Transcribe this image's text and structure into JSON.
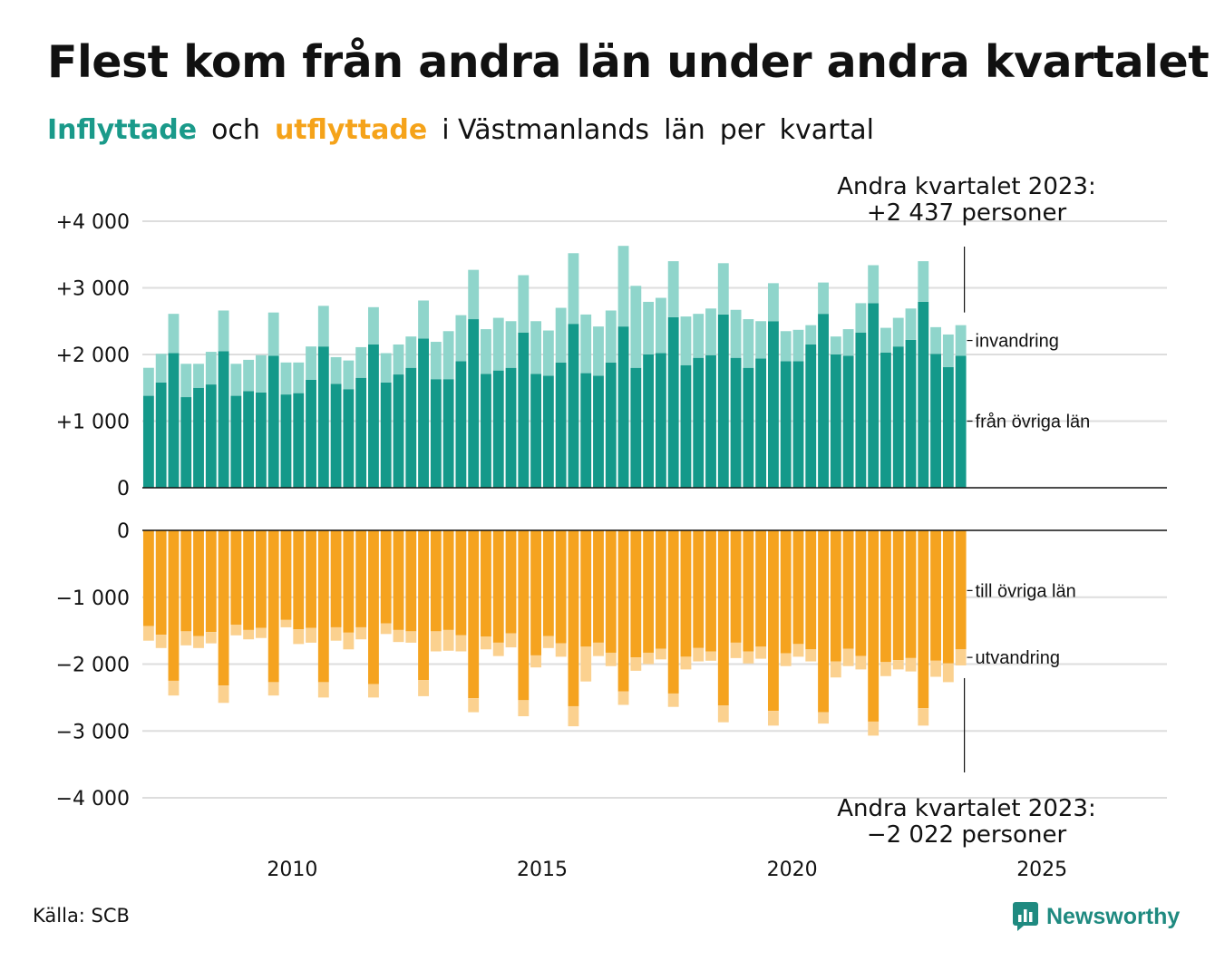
{
  "title": "Flest kom från andra län under andra kvartalet",
  "subtitle": {
    "part1": "Inflyttade",
    "part2": "och",
    "part3": "utflyttade",
    "part4": "i Västmanlands",
    "part5": "län",
    "part6": "per",
    "part7": "kvartal"
  },
  "source": "Källa: SCB",
  "brand": "Newsworthy",
  "colors": {
    "in_domestic": "#14998a",
    "in_international": "#8fd5cb",
    "out_domestic": "#f5a31f",
    "out_international": "#fbd18f",
    "highlight_in": "#1a9a8a",
    "highlight_out": "#f5a31a"
  },
  "chart_data": {
    "type": "bar",
    "stacked": true,
    "quarters": [
      "2007Q1",
      "2007Q2",
      "2007Q3",
      "2007Q4",
      "2008Q1",
      "2008Q2",
      "2008Q3",
      "2008Q4",
      "2009Q1",
      "2009Q2",
      "2009Q3",
      "2009Q4",
      "2010Q1",
      "2010Q2",
      "2010Q3",
      "2010Q4",
      "2011Q1",
      "2011Q2",
      "2011Q3",
      "2011Q4",
      "2012Q1",
      "2012Q2",
      "2012Q3",
      "2012Q4",
      "2013Q1",
      "2013Q2",
      "2013Q3",
      "2013Q4",
      "2014Q1",
      "2014Q2",
      "2014Q3",
      "2014Q4",
      "2015Q1",
      "2015Q2",
      "2015Q3",
      "2015Q4",
      "2016Q1",
      "2016Q2",
      "2016Q3",
      "2016Q4",
      "2017Q1",
      "2017Q2",
      "2017Q3",
      "2017Q4",
      "2018Q1",
      "2018Q2",
      "2018Q3",
      "2018Q4",
      "2019Q1",
      "2019Q2",
      "2019Q3",
      "2019Q4",
      "2020Q1",
      "2020Q2",
      "2020Q3",
      "2020Q4",
      "2021Q1",
      "2021Q2",
      "2021Q3",
      "2021Q4",
      "2022Q1",
      "2022Q2",
      "2022Q3",
      "2022Q4",
      "2023Q1",
      "2023Q2"
    ],
    "x_ticks": [
      "2010",
      "2015",
      "2020",
      "2025"
    ],
    "x_range": [
      "2007Q1",
      "2027Q3"
    ],
    "top_panel": {
      "y_ticks": [
        "+4 000",
        "+3 000",
        "+2 000",
        "+1 000",
        "0"
      ],
      "ylim": [
        0,
        4000
      ],
      "series": [
        {
          "name": "från övriga län",
          "values": [
            1380,
            1580,
            2020,
            1360,
            1500,
            1550,
            2050,
            1380,
            1450,
            1430,
            1980,
            1400,
            1420,
            1620,
            2120,
            1560,
            1480,
            1650,
            2150,
            1580,
            1700,
            1800,
            2240,
            1630,
            1630,
            1900,
            2530,
            1710,
            1760,
            1800,
            2330,
            1710,
            1680,
            1880,
            2460,
            1720,
            1680,
            1880,
            2420,
            1800,
            2000,
            2020,
            2560,
            1840,
            1950,
            1990,
            2600,
            1950,
            1800,
            1940,
            2500,
            1900,
            1900,
            2150,
            2610,
            2000,
            1980,
            2330,
            2770,
            2030,
            2120,
            2220,
            2790,
            2010,
            1810,
            1980
          ]
        },
        {
          "name": "invandring",
          "values": [
            420,
            430,
            590,
            500,
            360,
            490,
            610,
            480,
            470,
            560,
            650,
            480,
            460,
            500,
            610,
            400,
            430,
            460,
            560,
            440,
            450,
            470,
            570,
            560,
            720,
            690,
            740,
            670,
            790,
            700,
            860,
            790,
            680,
            820,
            1060,
            880,
            740,
            780,
            1210,
            1230,
            790,
            830,
            840,
            730,
            660,
            700,
            770,
            720,
            730,
            560,
            570,
            450,
            470,
            290,
            470,
            270,
            400,
            440,
            570,
            370,
            430,
            470,
            610,
            400,
            490,
            460
          ]
        }
      ],
      "annotation": [
        "Andra kvartalet 2023:",
        "+2 437 personer"
      ],
      "total_2023Q2": 2437
    },
    "bottom_panel": {
      "y_ticks": [
        "0",
        "−1 000",
        "−2 000",
        "−3 000",
        "−4 000"
      ],
      "ylim": [
        -4000,
        0
      ],
      "series": [
        {
          "name": "till övriga län",
          "values": [
            -1430,
            -1560,
            -2250,
            -1510,
            -1580,
            -1520,
            -2320,
            -1410,
            -1490,
            -1460,
            -2270,
            -1340,
            -1480,
            -1460,
            -2270,
            -1450,
            -1530,
            -1450,
            -2300,
            -1390,
            -1490,
            -1510,
            -2240,
            -1510,
            -1490,
            -1570,
            -2510,
            -1590,
            -1680,
            -1540,
            -2540,
            -1870,
            -1580,
            -1690,
            -2630,
            -1740,
            -1680,
            -1830,
            -2410,
            -1900,
            -1830,
            -1770,
            -2440,
            -1890,
            -1760,
            -1810,
            -2620,
            -1680,
            -1810,
            -1740,
            -2700,
            -1840,
            -1700,
            -1780,
            -2720,
            -1960,
            -1770,
            -1880,
            -2860,
            -1970,
            -1940,
            -1910,
            -2660,
            -1950,
            -1990,
            -1780
          ]
        },
        {
          "name": "utvandring",
          "values": [
            -220,
            -200,
            -220,
            -210,
            -180,
            -170,
            -260,
            -160,
            -140,
            -150,
            -200,
            -110,
            -220,
            -220,
            -230,
            -200,
            -250,
            -180,
            -200,
            -160,
            -180,
            -170,
            -240,
            -300,
            -310,
            -240,
            -210,
            -190,
            -200,
            -210,
            -240,
            -180,
            -180,
            -200,
            -300,
            -520,
            -200,
            -200,
            -200,
            -200,
            -170,
            -160,
            -200,
            -190,
            -200,
            -140,
            -250,
            -230,
            -180,
            -180,
            -220,
            -190,
            -190,
            -180,
            -170,
            -240,
            -260,
            -200,
            -210,
            -210,
            -140,
            -200,
            -260,
            -240,
            -280,
            -240
          ]
        }
      ],
      "annotation": [
        "Andra kvartalet 2023:",
        "−2 022 personer"
      ],
      "total_2023Q2": -2022
    }
  }
}
